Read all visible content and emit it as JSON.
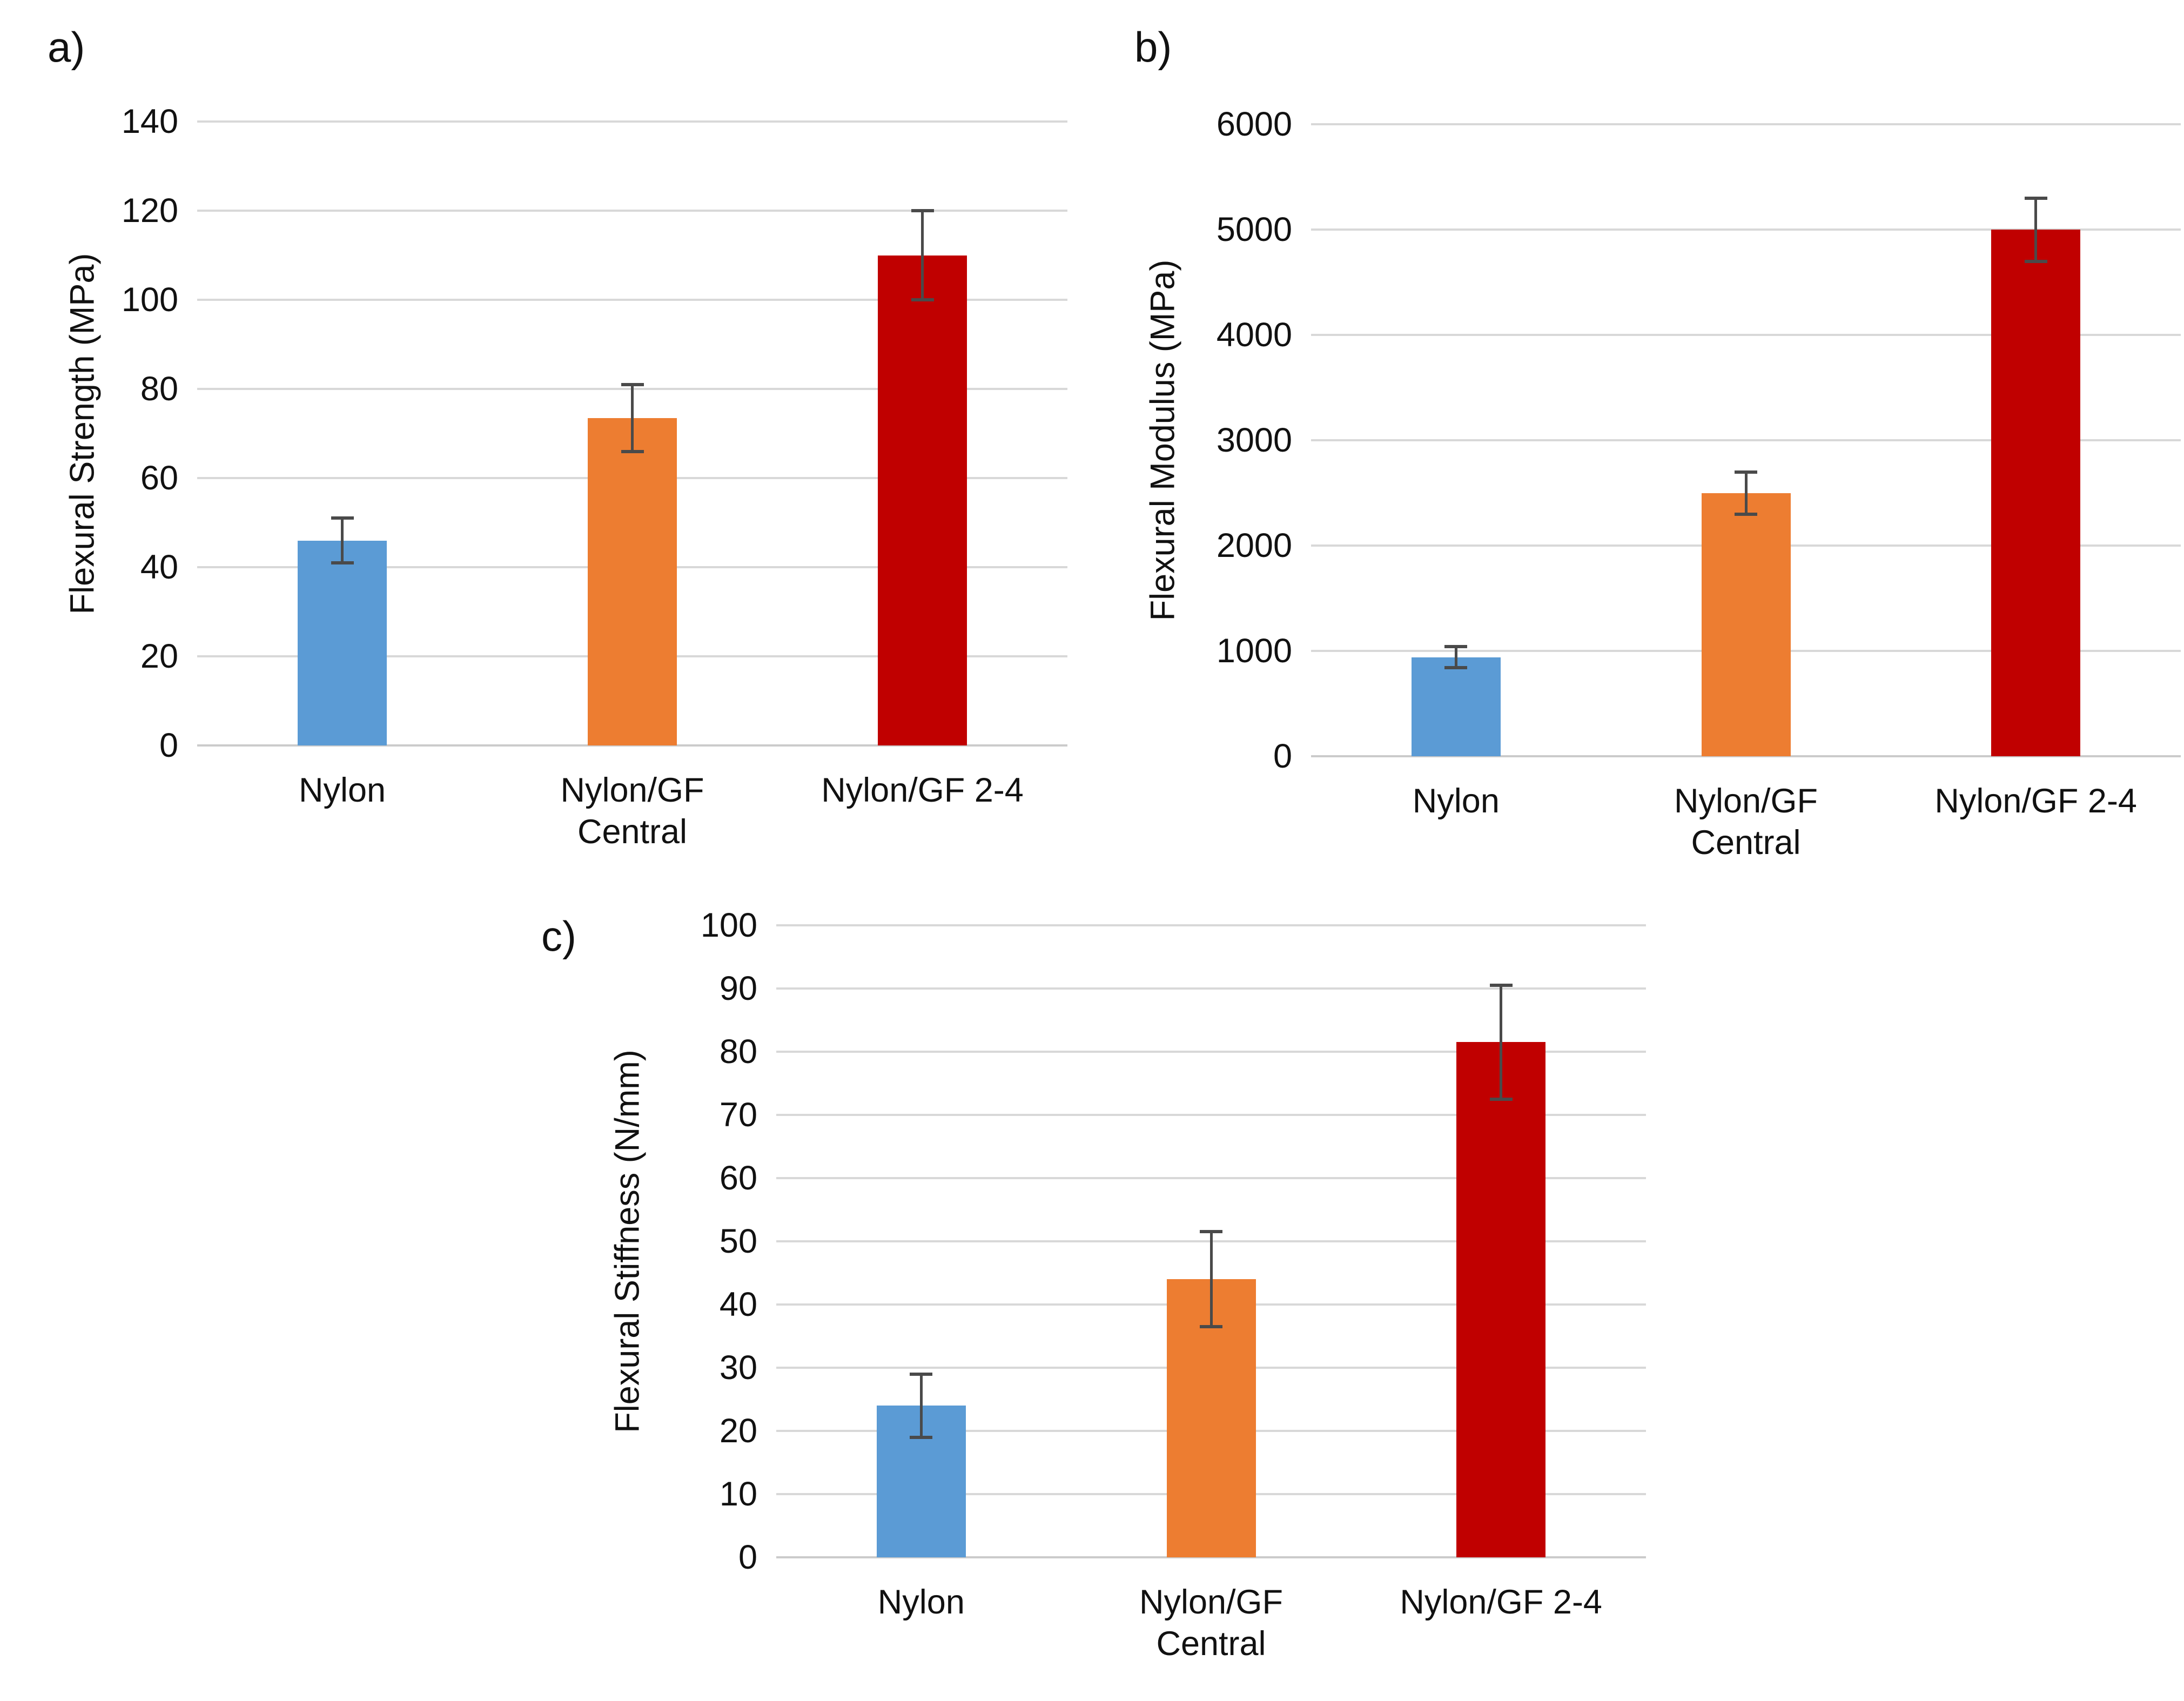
{
  "figure": {
    "background": "#FFFFFF",
    "text_color": "#111111",
    "gridline_color": "#D8D8D8",
    "axis_line_color": "#CBCBCB",
    "error_bar_color": "#4A4A4A"
  },
  "chart_data": [
    {
      "id": "a",
      "panel_label": "a)",
      "type": "bar",
      "ylabel": "Flexural Strength (MPa)",
      "ylim": [
        0,
        140
      ],
      "ytick_step": 20,
      "yticks_top_down": [
        "140",
        "120",
        "100",
        "80",
        "60",
        "40",
        "20",
        "0"
      ],
      "grid": true,
      "legend_position": "none",
      "categories": [
        "Nylon",
        "Nylon/GF\nCentral",
        "Nylon/GF 2-4"
      ],
      "values": [
        46,
        73.5,
        110
      ],
      "errors": [
        5,
        7.5,
        10
      ],
      "bar_colors": [
        "#5B9BD5",
        "#ED7D31",
        "#C00000"
      ]
    },
    {
      "id": "b",
      "panel_label": "b)",
      "type": "bar",
      "ylabel": "Flexural Modulus (MPa)",
      "ylim": [
        0,
        6000
      ],
      "ytick_step": 1000,
      "yticks_top_down": [
        "6000",
        "5000",
        "4000",
        "3000",
        "2000",
        "1000",
        "0"
      ],
      "grid": true,
      "legend_position": "none",
      "categories": [
        "Nylon",
        "Nylon/GF\nCentral",
        "Nylon/GF 2-4"
      ],
      "values": [
        940,
        2500,
        5000
      ],
      "errors": [
        100,
        200,
        300
      ],
      "bar_colors": [
        "#5B9BD5",
        "#ED7D31",
        "#C00000"
      ]
    },
    {
      "id": "c",
      "panel_label": "c)",
      "type": "bar",
      "ylabel": "Flexural Stiffness (N/mm)",
      "ylim": [
        0,
        100
      ],
      "ytick_step": 10,
      "yticks_top_down": [
        "100",
        "90",
        "80",
        "70",
        "60",
        "50",
        "40",
        "30",
        "20",
        "10",
        "0"
      ],
      "grid": true,
      "legend_position": "none",
      "categories": [
        "Nylon",
        "Nylon/GF\nCentral",
        "Nylon/GF 2-4"
      ],
      "values": [
        24,
        44,
        81.5
      ],
      "errors": [
        5,
        7.5,
        9
      ],
      "bar_colors": [
        "#5B9BD5",
        "#ED7D31",
        "#C00000"
      ]
    }
  ]
}
